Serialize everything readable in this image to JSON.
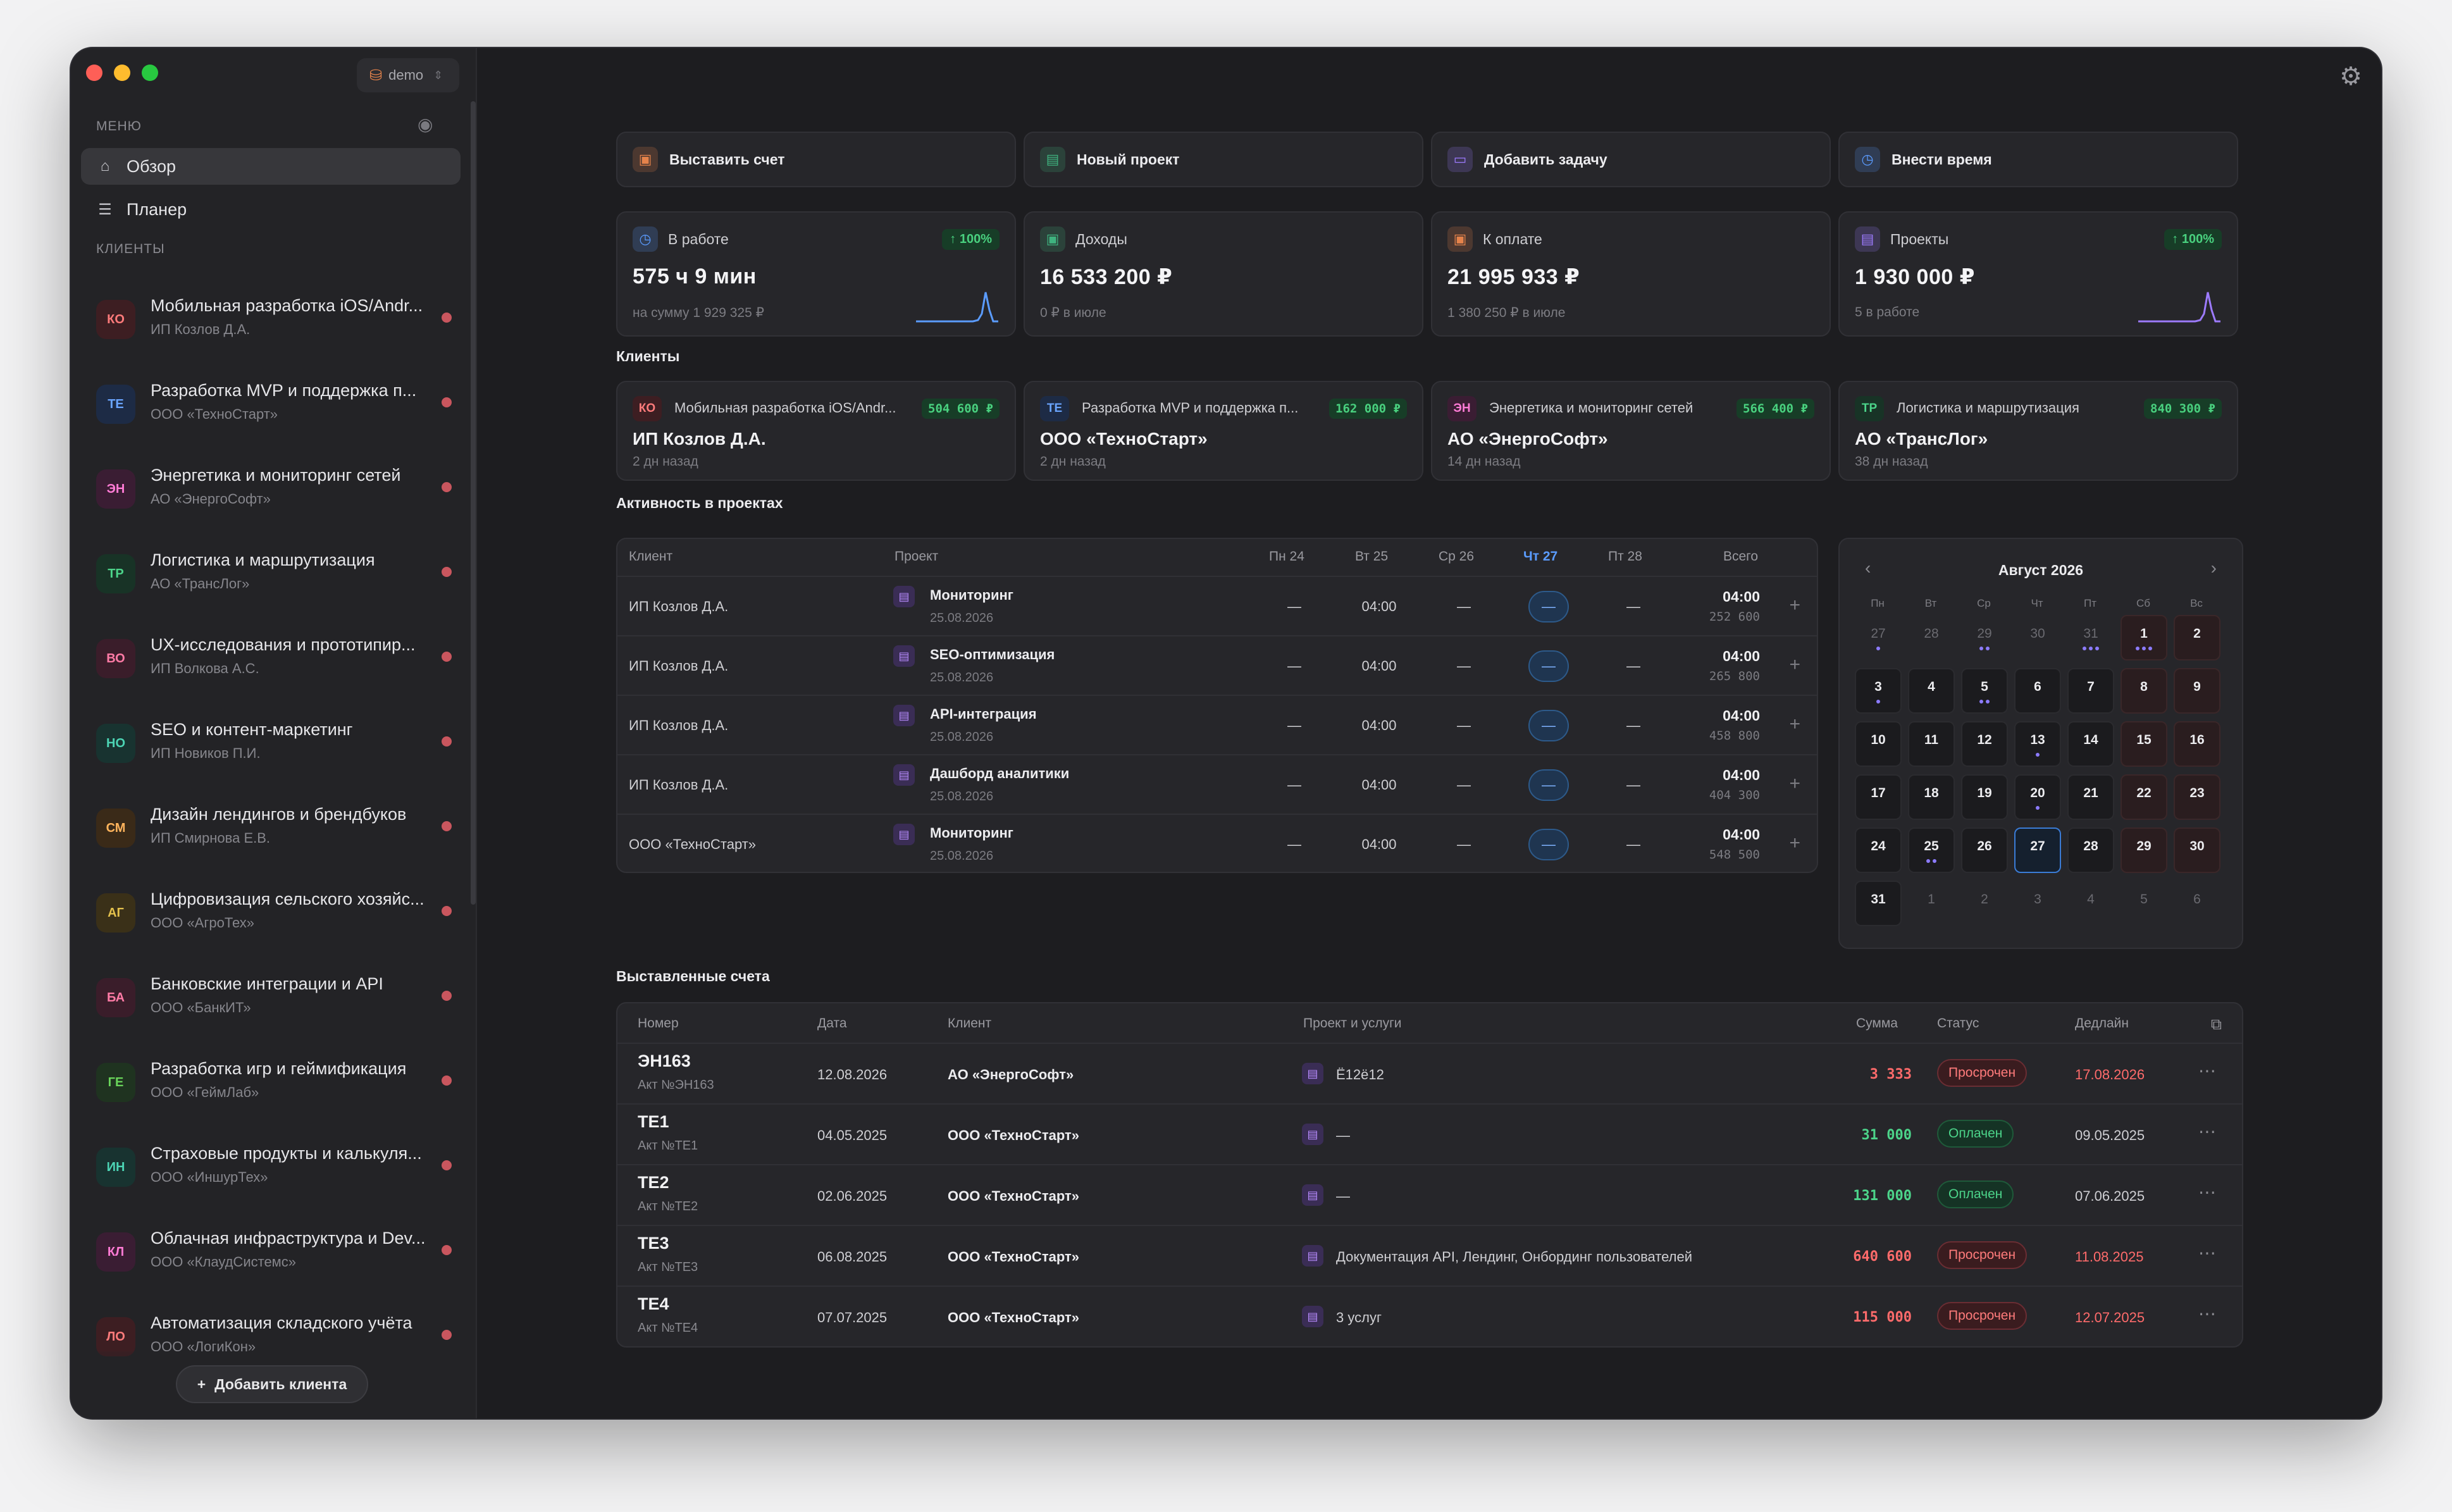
{
  "sidebar": {
    "workspace": "demo",
    "menu_title": "МЕНЮ",
    "nav": [
      {
        "label": "Обзор"
      },
      {
        "label": "Планер"
      }
    ],
    "clients_title": "КЛИЕНТЫ",
    "clients": [
      {
        "abbr": "КО",
        "name": "Мобильная разработка iOS/Andr...",
        "org": "ИП Козлов Д.А."
      },
      {
        "abbr": "ТЕ",
        "name": "Разработка MVP и поддержка п...",
        "org": "ООО «ТехноСтарт»"
      },
      {
        "abbr": "ЭН",
        "name": "Энергетика и мониторинг сетей",
        "org": "АО «ЭнергоСофт»"
      },
      {
        "abbr": "ТР",
        "name": "Логистика и маршрутизация",
        "org": "АО «ТрансЛог»"
      },
      {
        "abbr": "ВО",
        "name": "UX-исследования и прототипир...",
        "org": "ИП Волкова А.С."
      },
      {
        "abbr": "НО",
        "name": "SEO и контент-маркетинг",
        "org": "ИП Новиков П.И."
      },
      {
        "abbr": "СМ",
        "name": "Дизайн лендингов и брендбуков",
        "org": "ИП Смирнова Е.В."
      },
      {
        "abbr": "АГ",
        "name": "Цифровизация сельского хозяйс...",
        "org": "ООО «АгроТех»"
      },
      {
        "abbr": "БА",
        "name": "Банковские интеграции и API",
        "org": "ООО «БанкИТ»"
      },
      {
        "abbr": "ГЕ",
        "name": "Разработка игр и геймификация",
        "org": "ООО «ГеймЛаб»"
      },
      {
        "abbr": "ИН",
        "name": "Страховые продукты и калькуля...",
        "org": "ООО «ИншурТех»"
      },
      {
        "abbr": "КЛ",
        "name": "Облачная инфраструктура и Dev...",
        "org": "ООО «КлаудСистемс»"
      },
      {
        "abbr": "ЛО",
        "name": "Автоматизация складского учёта",
        "org": "ООО «ЛогиКон»"
      }
    ],
    "add_client": "Добавить клиента"
  },
  "actions": [
    {
      "label": "Выставить счет",
      "icon": "wallet-icon",
      "color": "#e5834b"
    },
    {
      "label": "Новый проект",
      "icon": "briefcase-icon",
      "color": "#3fb27f"
    },
    {
      "label": "Добавить задачу",
      "icon": "inbox-icon",
      "color": "#9d7bff"
    },
    {
      "label": "Внести время",
      "icon": "stopwatch-icon",
      "color": "#5b9cff"
    }
  ],
  "stats": [
    {
      "label": "В работе",
      "value": "575 ч 9 мин",
      "sub": "на сумму 1 929 325 ₽",
      "pill": "↑ 100%",
      "icon": "clock-icon",
      "color": "#5b9cff"
    },
    {
      "label": "Доходы",
      "value": "16 533 200 ₽",
      "sub": "0 ₽ в июле",
      "pill": "",
      "icon": "wallet-icon",
      "color": "#3fb27f"
    },
    {
      "label": "К оплате",
      "value": "21 995 933 ₽",
      "sub": "1 380 250 ₽ в июле",
      "pill": "",
      "icon": "card-icon",
      "color": "#e5834b"
    },
    {
      "label": "Проекты",
      "value": "1 930 000 ₽",
      "sub": "5 в работе",
      "pill": "↑ 100%",
      "icon": "briefcase-icon",
      "color": "#9d7bff"
    }
  ],
  "clients_section": {
    "title": "Клиенты",
    "items": [
      {
        "abbr": "КО",
        "project": "Мобильная разработка iOS/Andr...",
        "amount": "504 600 ₽",
        "client": "ИП Козлов Д.А.",
        "ago": "2 дн назад"
      },
      {
        "abbr": "ТЕ",
        "project": "Разработка MVP и поддержка п...",
        "amount": "162 000 ₽",
        "client": "ООО «ТехноСтарт»",
        "ago": "2 дн назад"
      },
      {
        "abbr": "ЭН",
        "project": "Энергетика и мониторинг сетей",
        "amount": "566 400 ₽",
        "client": "АО «ЭнергоСофт»",
        "ago": "14 дн назад"
      },
      {
        "abbr": "ТР",
        "project": "Логистика и маршрутизация",
        "amount": "840 300 ₽",
        "client": "АО «ТрансЛог»",
        "ago": "38 дн назад"
      }
    ]
  },
  "activity": {
    "title": "Активность в проектах",
    "headers": {
      "client": "Клиент",
      "project": "Проект",
      "d1": "Пн 24",
      "d2": "Вт 25",
      "d3": "Ср 26",
      "d4": "Чт 27",
      "d5": "Пт 28",
      "total": "Всего"
    },
    "rows": [
      {
        "client": "ИП Козлов Д.А.",
        "project": "Мониторинг",
        "date": "25.08.2026",
        "d1": "—",
        "d2": "04:00",
        "d3": "—",
        "d4": "—",
        "d5": "—",
        "total": "04:00",
        "total_sum": "252 600"
      },
      {
        "client": "ИП Козлов Д.А.",
        "project": "SEO-оптимизация",
        "date": "25.08.2026",
        "d1": "—",
        "d2": "04:00",
        "d3": "—",
        "d4": "—",
        "d5": "—",
        "total": "04:00",
        "total_sum": "265 800"
      },
      {
        "client": "ИП Козлов Д.А.",
        "project": "API-интеграция",
        "date": "25.08.2026",
        "d1": "—",
        "d2": "04:00",
        "d3": "—",
        "d4": "—",
        "d5": "—",
        "total": "04:00",
        "total_sum": "458 800"
      },
      {
        "client": "ИП Козлов Д.А.",
        "project": "Дашборд аналитики",
        "date": "25.08.2026",
        "d1": "—",
        "d2": "04:00",
        "d3": "—",
        "d4": "—",
        "d5": "—",
        "total": "04:00",
        "total_sum": "404 300"
      },
      {
        "client": "ООО «ТехноСтарт»",
        "project": "Мониторинг",
        "date": "25.08.2026",
        "d1": "—",
        "d2": "04:00",
        "d3": "—",
        "d4": "—",
        "d5": "—",
        "total": "04:00",
        "total_sum": "548 500"
      }
    ]
  },
  "calendar": {
    "month": "Август 2026",
    "dow": [
      "Пн",
      "Вт",
      "Ср",
      "Чт",
      "Пт",
      "Сб",
      "Вс"
    ],
    "weeks": [
      [
        {
          "d": "27",
          "o": 1,
          "dots": 1
        },
        {
          "d": "28",
          "o": 1
        },
        {
          "d": "29",
          "o": 1,
          "dots": 2
        },
        {
          "d": "30",
          "o": 1
        },
        {
          "d": "31",
          "o": 1,
          "dots": 3
        },
        {
          "d": "1",
          "w": 1,
          "dots": 3
        },
        {
          "d": "2",
          "w": 1
        }
      ],
      [
        {
          "d": "3",
          "dots": 1
        },
        {
          "d": "4"
        },
        {
          "d": "5",
          "dots": 2
        },
        {
          "d": "6"
        },
        {
          "d": "7"
        },
        {
          "d": "8",
          "w": 1
        },
        {
          "d": "9",
          "w": 1
        }
      ],
      [
        {
          "d": "10"
        },
        {
          "d": "11"
        },
        {
          "d": "12"
        },
        {
          "d": "13",
          "dots": 1
        },
        {
          "d": "14"
        },
        {
          "d": "15",
          "w": 1
        },
        {
          "d": "16",
          "w": 1
        }
      ],
      [
        {
          "d": "17"
        },
        {
          "d": "18"
        },
        {
          "d": "19"
        },
        {
          "d": "20",
          "dots": 1
        },
        {
          "d": "21"
        },
        {
          "d": "22",
          "w": 1
        },
        {
          "d": "23",
          "w": 1
        }
      ],
      [
        {
          "d": "24"
        },
        {
          "d": "25",
          "dots": 2
        },
        {
          "d": "26"
        },
        {
          "d": "27",
          "t": 1
        },
        {
          "d": "28"
        },
        {
          "d": "29",
          "w": 1
        },
        {
          "d": "30",
          "w": 1
        }
      ],
      [
        {
          "d": "31"
        },
        {
          "d": "1",
          "o": 1
        },
        {
          "d": "2",
          "o": 1
        },
        {
          "d": "3",
          "o": 1
        },
        {
          "d": "4",
          "o": 1
        },
        {
          "d": "5",
          "o": 1
        },
        {
          "d": "6",
          "o": 1
        }
      ]
    ]
  },
  "invoices": {
    "title": "Выставленные счета",
    "headers": {
      "number": "Номер",
      "date": "Дата",
      "client": "Клиент",
      "project": "Проект и услуги",
      "sum": "Сумма",
      "status": "Статус",
      "deadline": "Дедлайн"
    },
    "rows": [
      {
        "number": "ЭН163",
        "act": "Акт №ЭН163",
        "date": "12.08.2026",
        "client": "АО «ЭнергоСофт»",
        "project": "Ё12ё12",
        "sum": "3 333",
        "status": "Просрочен",
        "state": "over",
        "deadline": "17.08.2026"
      },
      {
        "number": "ТЕ1",
        "act": "Акт №ТЕ1",
        "date": "04.05.2025",
        "client": "ООО «ТехноСтарт»",
        "project": "—",
        "sum": "31 000",
        "status": "Оплачен",
        "state": "paid",
        "deadline": "09.05.2025"
      },
      {
        "number": "ТЕ2",
        "act": "Акт №ТЕ2",
        "date": "02.06.2025",
        "client": "ООО «ТехноСтарт»",
        "project": "—",
        "sum": "131 000",
        "status": "Оплачен",
        "state": "paid",
        "deadline": "07.06.2025"
      },
      {
        "number": "ТЕ3",
        "act": "Акт №ТЕ3",
        "date": "06.08.2025",
        "client": "ООО «ТехноСтарт»",
        "project": "Документация API, Лендинг, Онбординг пользователей",
        "sum": "640 600",
        "status": "Просрочен",
        "state": "over",
        "deadline": "11.08.2025"
      },
      {
        "number": "ТЕ4",
        "act": "Акт №ТЕ4",
        "date": "07.07.2025",
        "client": "ООО «ТехноСтарт»",
        "project": "3 услуг",
        "sum": "115 000",
        "status": "Просрочен",
        "state": "over",
        "deadline": "12.07.2025"
      }
    ]
  }
}
